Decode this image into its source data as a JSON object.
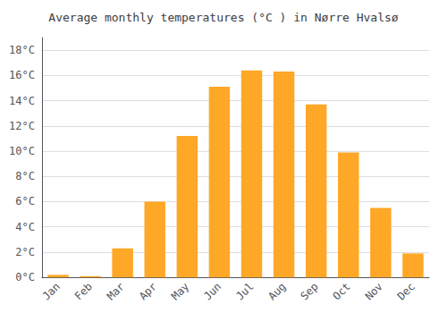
{
  "chart_data": {
    "type": "bar",
    "title": "Average monthly temperatures (°C ) in Nørre Hvalsø",
    "categories": [
      "Jan",
      "Feb",
      "Mar",
      "Apr",
      "May",
      "Jun",
      "Jul",
      "Aug",
      "Sep",
      "Oct",
      "Nov",
      "Dec"
    ],
    "values": [
      0.2,
      0.1,
      2.3,
      6.0,
      11.2,
      15.1,
      16.4,
      16.3,
      13.7,
      9.9,
      5.5,
      1.9
    ],
    "color": "#FFA726",
    "ylim": [
      0,
      19
    ],
    "yticks": [
      {
        "value": 0,
        "label": "0°C"
      },
      {
        "value": 2,
        "label": "2°C"
      },
      {
        "value": 4,
        "label": "4°C"
      },
      {
        "value": 6,
        "label": "6°C"
      },
      {
        "value": 8,
        "label": "8°C"
      },
      {
        "value": 10,
        "label": "10°C"
      },
      {
        "value": 12,
        "label": "12°C"
      },
      {
        "value": 14,
        "label": "14°C"
      },
      {
        "value": 16,
        "label": "16°C"
      },
      {
        "value": 18,
        "label": "18°C"
      }
    ],
    "grid": true
  }
}
